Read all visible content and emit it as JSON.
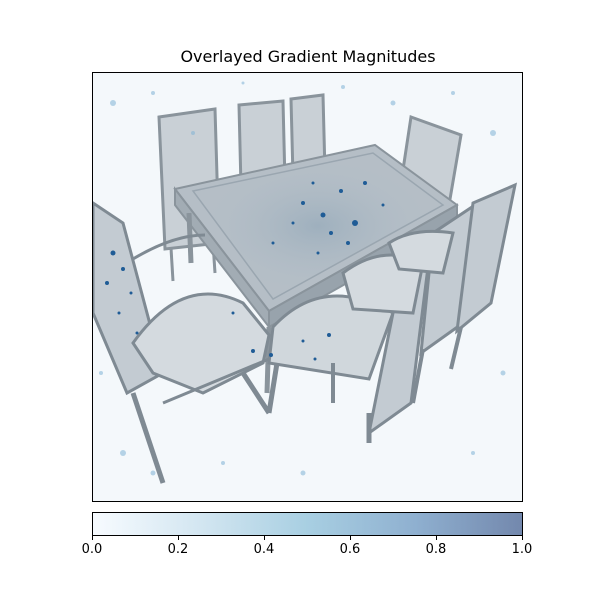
{
  "chart_data": {
    "type": "heatmap",
    "title": "Overlayed Gradient Magnitudes",
    "colorbar": {
      "range": [
        0.0,
        1.0
      ],
      "ticks": [
        0.0,
        0.2,
        0.4,
        0.6,
        0.8,
        1.0
      ],
      "tick_labels": [
        "0.0",
        "0.2",
        "0.4",
        "0.6",
        "0.8",
        "1.0"
      ],
      "colormap_colors": [
        "#f7fbff",
        "#d3e6f1",
        "#a8cfe2",
        "#8fb0d0",
        "#7388ad"
      ]
    },
    "background_image": "dining table with eight chairs (grayscale render)",
    "xticks": [],
    "yticks": []
  }
}
